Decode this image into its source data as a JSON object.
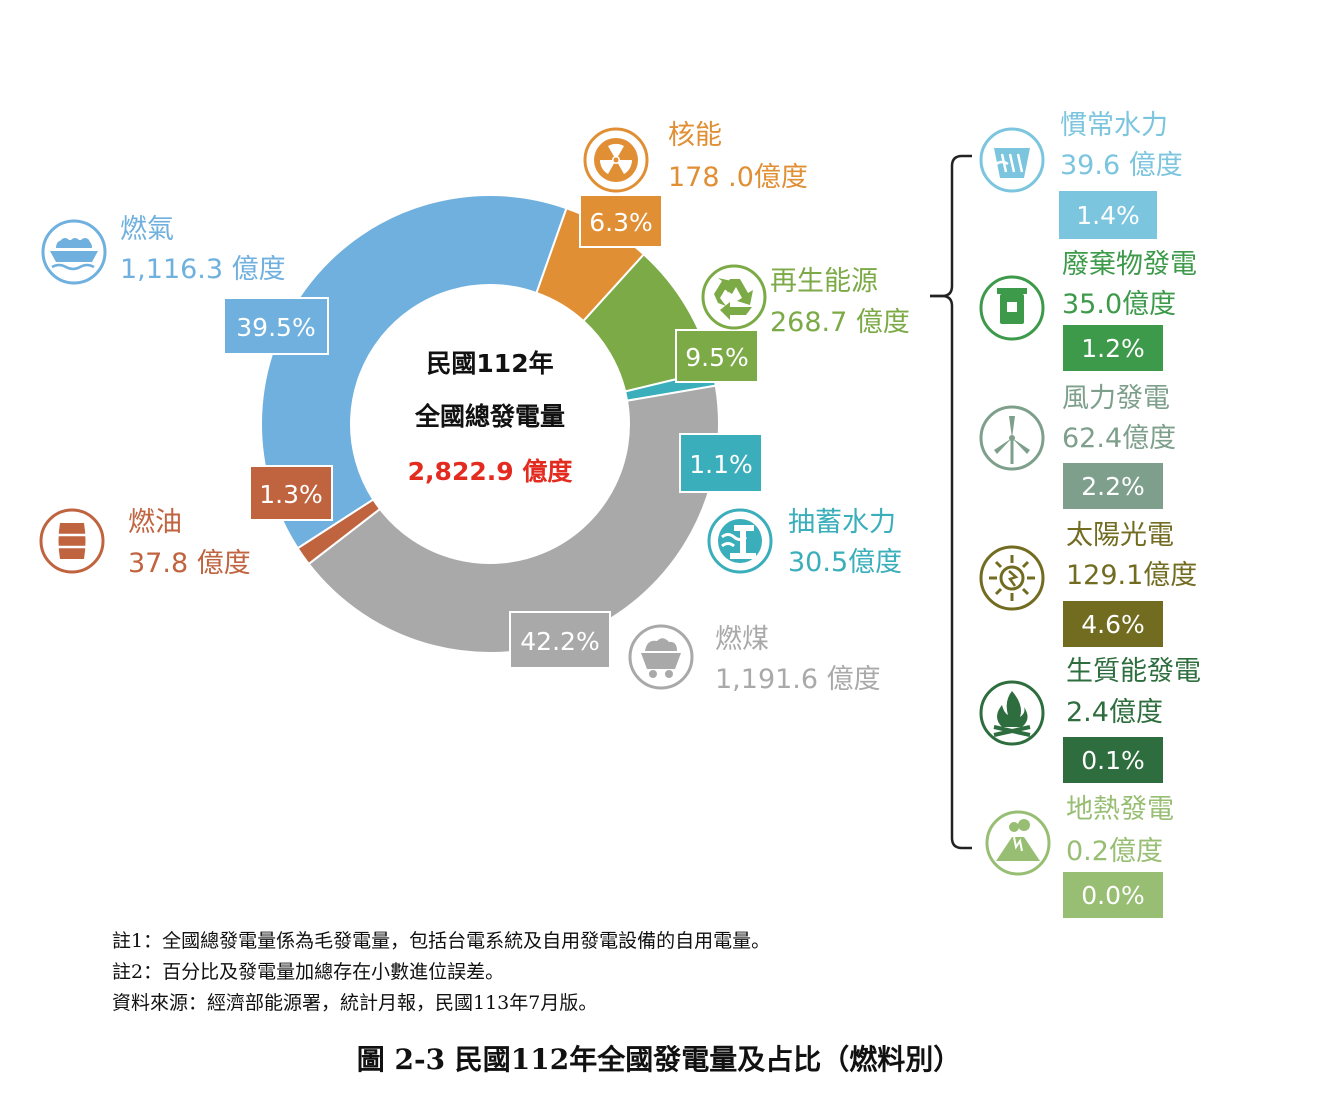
{
  "chart_data": {
    "type": "pie",
    "center_title": [
      "民國112年",
      "全國總發電量"
    ],
    "center_total": "2,822.9 億度",
    "categories": [
      "核能",
      "再生能源",
      "抽蓄水力",
      "燃煤",
      "燃油",
      "燃氣"
    ],
    "values": [
      178.0,
      268.7,
      30.5,
      1191.6,
      37.8,
      1116.3
    ],
    "value_labels": [
      "178 .0億度",
      "268.7 億度",
      "30.5億度",
      "1,191.6 億度",
      "37.8 億度",
      "1,116.3 億度"
    ],
    "percent_labels": [
      "6.3%",
      "9.5%",
      "1.1%",
      "42.2%",
      "1.3%",
      "39.5%"
    ],
    "renewable_breakdown": {
      "categories": [
        "慣常水力",
        "廢棄物發電",
        "風力發電",
        "太陽光電",
        "生質能發電",
        "地熱發電"
      ],
      "value_labels": [
        "39.6 億度",
        "35.0億度",
        "62.4億度",
        "129.1億度",
        "2.4億度",
        "0.2億度"
      ],
      "percent_labels": [
        "1.4%",
        "1.2%",
        "2.2%",
        "4.6%",
        "0.1%",
        "0.0%"
      ]
    }
  },
  "colors": {
    "nuclear": "#E08F35",
    "renewable": "#7CAA47",
    "pumped_hydro": "#3AAEBB",
    "coal": "#A9A9A9",
    "oil": "#C0633F",
    "gas": "#6FB0DE",
    "conv_hydro": "#7CC5DE",
    "waste": "#3D9A4A",
    "wind": "#7E9F8B",
    "solar": "#716C20",
    "biomass": "#2E6E3E",
    "geothermal": "#98BE73",
    "center_total": "#E32B1F"
  },
  "icons": [
    "radiation-icon",
    "recycle-icon",
    "hydro-dam-icon",
    "coal-cart-icon",
    "oil-barrel-icon",
    "gas-tanker-icon",
    "waste-bin-icon",
    "wind-turbine-icon",
    "sun-icon",
    "fire-icon",
    "volcano-icon"
  ],
  "notes": [
    "註1：全國總發電量係為毛發電量，包括台電系統及自用發電設備的自用電量。",
    "註2：百分比及發電量加總存在小數進位誤差。",
    "資料來源：經濟部能源署，統計月報，民國113年7月版。"
  ],
  "caption": "圖 2-3  民國112年全國發電量及占比（燃料別）"
}
